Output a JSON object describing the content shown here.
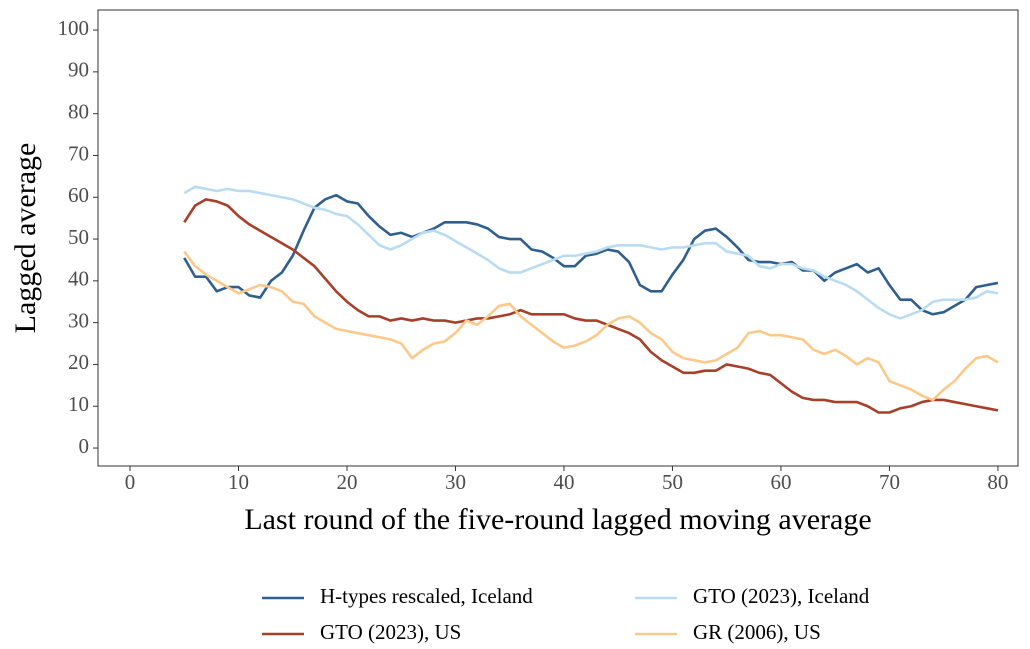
{
  "chart_data": {
    "type": "line",
    "x_label": "Last round of the five-round lagged moving average",
    "y_label": "Lagged average",
    "x": [
      5,
      6,
      7,
      8,
      9,
      10,
      11,
      12,
      13,
      14,
      15,
      16,
      17,
      18,
      19,
      20,
      21,
      22,
      23,
      24,
      25,
      26,
      27,
      28,
      29,
      30,
      31,
      32,
      33,
      34,
      35,
      36,
      37,
      38,
      39,
      40,
      41,
      42,
      43,
      44,
      45,
      46,
      47,
      48,
      49,
      50,
      51,
      52,
      53,
      54,
      55,
      56,
      57,
      58,
      59,
      60,
      61,
      62,
      63,
      64,
      65,
      66,
      67,
      68,
      69,
      70,
      71,
      72,
      73,
      74,
      75,
      76,
      77,
      78,
      79,
      80
    ],
    "series": [
      {
        "name": "H-types rescaled, Iceland",
        "color": "#2f5f8f",
        "values": [
          45.5,
          41,
          41,
          37.5,
          38.5,
          38.5,
          36.5,
          36,
          40,
          42,
          46,
          52,
          57.5,
          59.5,
          60.5,
          59,
          58.5,
          55.5,
          53,
          51,
          51.5,
          50.5,
          51.5,
          52.5,
          54,
          54,
          54,
          53.5,
          52.5,
          50.5,
          50,
          50,
          47.5,
          47,
          45.5,
          43.5,
          43.5,
          46,
          46.5,
          47.5,
          47,
          44.5,
          39,
          37.5,
          37.5,
          41.5,
          45,
          50,
          52,
          52.5,
          50.5,
          48,
          45,
          44.5,
          44.5,
          44,
          44.5,
          42.5,
          42.5,
          40,
          42,
          43,
          44,
          42,
          43,
          39,
          35.5,
          35.5,
          33,
          32,
          32.5,
          34,
          35.5,
          38.5,
          39,
          39.5
        ]
      },
      {
        "name": "GTO (2023), Iceland",
        "color": "#b9dcf2",
        "values": [
          61,
          62.5,
          62,
          61.5,
          62,
          61.5,
          61.5,
          61,
          60.5,
          60,
          59.5,
          58.5,
          57.5,
          57,
          56,
          55.5,
          53.5,
          51,
          48.5,
          47.5,
          48.5,
          50,
          51.5,
          52,
          51,
          49.5,
          48,
          46.5,
          45,
          43,
          42,
          42,
          43,
          44,
          45,
          46,
          46,
          46.5,
          47,
          48,
          48.5,
          48.5,
          48.5,
          48,
          47.5,
          48,
          48,
          48.5,
          49,
          49,
          47,
          46.5,
          46,
          43.5,
          43,
          44,
          44,
          43,
          42.5,
          41,
          40,
          39,
          37.5,
          35.5,
          33.5,
          32,
          31,
          32,
          33,
          35,
          35.5,
          35.5,
          35.5,
          36,
          37.5,
          37
        ]
      },
      {
        "name": "GTO (2023), US",
        "color": "#a6402a",
        "values": [
          54,
          58,
          59.5,
          59,
          58,
          55.5,
          53.5,
          52,
          50.5,
          49,
          47.5,
          45.5,
          43.5,
          40.5,
          37.5,
          35,
          33,
          31.5,
          31.5,
          30.5,
          31,
          30.5,
          31,
          30.5,
          30.5,
          30,
          30.5,
          31,
          31,
          31.5,
          32,
          33,
          32,
          32,
          32,
          32,
          31,
          30.5,
          30.5,
          29.5,
          28.5,
          27.5,
          26,
          23,
          21,
          19.5,
          18,
          18,
          18.5,
          18.5,
          20,
          19.5,
          19,
          18,
          17.5,
          15.5,
          13.5,
          12,
          11.5,
          11.5,
          11,
          11,
          11,
          10,
          8.5,
          8.5,
          9.5,
          10,
          11,
          11.5,
          11.5,
          11,
          10.5,
          10,
          9.5,
          9
        ]
      },
      {
        "name": "GR (2006), US",
        "color": "#fcc98a",
        "values": [
          47,
          43.5,
          41.5,
          40,
          38.5,
          37,
          38,
          39,
          38.5,
          37.5,
          35,
          34.5,
          31.5,
          30,
          28.5,
          28,
          27.5,
          27,
          26.5,
          26,
          25,
          21.5,
          23.5,
          25,
          25.5,
          27.5,
          30.5,
          29.5,
          31.5,
          34,
          34.5,
          31.5,
          29.5,
          27.5,
          25.5,
          24,
          24.5,
          25.5,
          27,
          29.5,
          31,
          31.5,
          30,
          27.5,
          26,
          23,
          21.5,
          21,
          20.5,
          21,
          22.5,
          24,
          27.5,
          28,
          27,
          27,
          26.5,
          26,
          23.5,
          22.5,
          23.5,
          22,
          20,
          21.5,
          20.5,
          16,
          15,
          14,
          12.5,
          11.5,
          14,
          16,
          19,
          21.5,
          22,
          20.5
        ]
      }
    ],
    "xlim": [
      -2.95,
      81.85
    ],
    "xticks": [
      0,
      10,
      20,
      30,
      40,
      50,
      60,
      70,
      80
    ],
    "ylim": [
      -4.3,
      104.8
    ],
    "yticks": [
      0,
      10,
      20,
      30,
      40,
      50,
      60,
      70,
      80,
      90,
      100
    ],
    "grid": false,
    "legend": "bottom"
  }
}
